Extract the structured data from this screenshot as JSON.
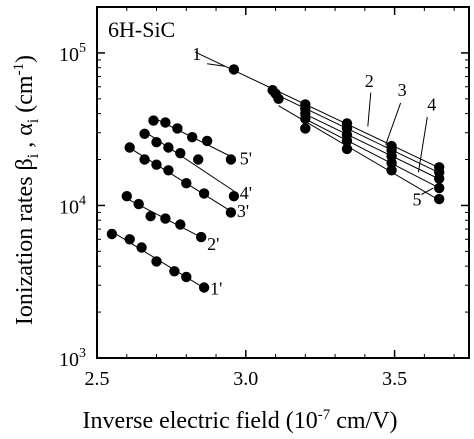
{
  "chart_data": {
    "type": "scatter",
    "inset_label": "6H-SiC",
    "xlabel": "Inverse electric field (10^-7 cm/V)",
    "xlabel_parts": {
      "main": "Inverse electric field (10",
      "exp": "-7",
      "unit": " cm/V)"
    },
    "ylabel": "Ionization rates βi , αi (cm-1)",
    "ylabel_parts": {
      "main": "Ionization rates β",
      "sub1": "i",
      "mid": " , α",
      "sub2": "i",
      "unit": " (cm",
      "exp": "-1",
      "close": ")"
    },
    "xlim": [
      2.5,
      3.75
    ],
    "ylim": [
      1000,
      200000
    ],
    "yscale": "log",
    "x_ticks": [
      2.5,
      3.0,
      3.5
    ],
    "x_tick_labels": [
      "2.5",
      "3.0",
      "3.5"
    ],
    "y_ticks": [
      1000,
      10000,
      100000
    ],
    "y_tick_labels": [
      {
        "base": "10",
        "exp": "3"
      },
      {
        "base": "10",
        "exp": "4"
      },
      {
        "base": "10",
        "exp": "5"
      }
    ],
    "series": [
      {
        "name": "1",
        "points": [
          [
            2.96,
            78000
          ],
          [
            3.09,
            57000
          ],
          [
            3.2,
            46000
          ],
          [
            3.34,
            34500
          ],
          [
            3.49,
            24500
          ],
          [
            3.65,
            17800
          ]
        ]
      },
      {
        "name": "2",
        "points": [
          [
            3.1,
            54000
          ],
          [
            3.2,
            43000
          ],
          [
            3.34,
            32000
          ],
          [
            3.49,
            23000
          ],
          [
            3.65,
            16500
          ]
        ]
      },
      {
        "name": "3",
        "points": [
          [
            3.2,
            40000
          ],
          [
            3.34,
            29000
          ],
          [
            3.49,
            21000
          ],
          [
            3.65,
            15000
          ]
        ]
      },
      {
        "name": "4",
        "points": [
          [
            3.2,
            37000
          ],
          [
            3.34,
            26500
          ],
          [
            3.49,
            19000
          ],
          [
            3.65,
            13000
          ]
        ]
      },
      {
        "name": "5",
        "points": [
          [
            3.11,
            50000
          ],
          [
            3.2,
            32000
          ],
          [
            3.34,
            23500
          ],
          [
            3.49,
            17000
          ],
          [
            3.65,
            11000
          ]
        ]
      },
      {
        "name": "1'",
        "points": [
          [
            2.55,
            6500
          ],
          [
            2.61,
            6000
          ],
          [
            2.65,
            5300
          ],
          [
            2.7,
            4300
          ],
          [
            2.76,
            3700
          ],
          [
            2.8,
            3400
          ],
          [
            2.86,
            2900
          ]
        ]
      },
      {
        "name": "2'",
        "points": [
          [
            2.6,
            11500
          ],
          [
            2.64,
            10200
          ],
          [
            2.68,
            8500
          ],
          [
            2.73,
            8200
          ],
          [
            2.78,
            7500
          ],
          [
            2.85,
            6200
          ]
        ]
      },
      {
        "name": "3'",
        "points": [
          [
            2.61,
            24000
          ],
          [
            2.66,
            20000
          ],
          [
            2.7,
            18500
          ],
          [
            2.74,
            17000
          ],
          [
            2.8,
            14000
          ],
          [
            2.86,
            12000
          ],
          [
            2.95,
            9000
          ]
        ]
      },
      {
        "name": "4'",
        "points": [
          [
            2.66,
            29500
          ],
          [
            2.7,
            26000
          ],
          [
            2.74,
            24000
          ],
          [
            2.78,
            22000
          ],
          [
            2.84,
            20000
          ],
          [
            2.96,
            11500
          ]
        ]
      },
      {
        "name": "5'",
        "points": [
          [
            2.69,
            36000
          ],
          [
            2.73,
            35000
          ],
          [
            2.77,
            32000
          ],
          [
            2.82,
            28000
          ],
          [
            2.87,
            26500
          ],
          [
            2.95,
            20000
          ]
        ]
      }
    ],
    "annotations": [
      "1",
      "2",
      "3",
      "4",
      "5",
      "1'",
      "2'",
      "3'",
      "4'",
      "5'"
    ],
    "grid": false,
    "legend": "none",
    "colors": {
      "marker": "#000000",
      "line": "#000000",
      "background": "#ffffff"
    }
  }
}
